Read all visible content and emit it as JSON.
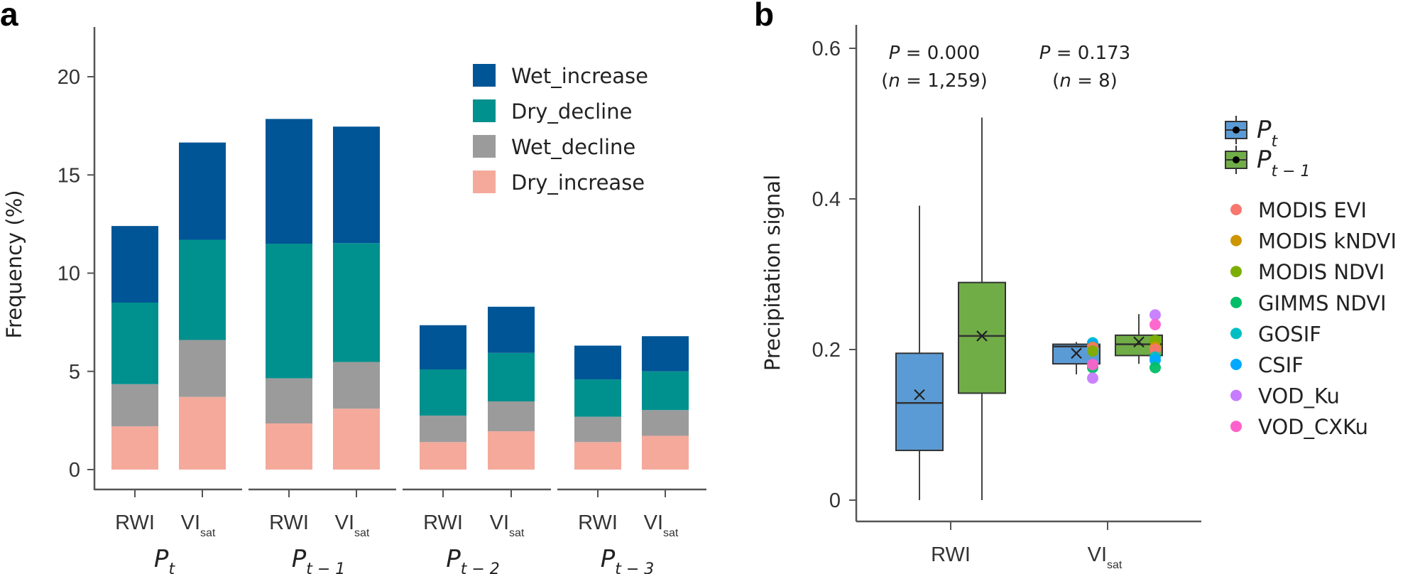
{
  "chart_data": [
    {
      "panel": "a",
      "type": "bar",
      "stacked": true,
      "title": "",
      "xlabel": "",
      "ylabel": "Frequency (%)",
      "ylim": [
        0,
        22.5
      ],
      "yticks": [
        0,
        5,
        10,
        15,
        20
      ],
      "grid": false,
      "legend_position": "top-right",
      "groups": [
        {
          "label": "P",
          "sub": "t",
          "categories": [
            "RWI",
            "VI_sat"
          ]
        },
        {
          "label": "P",
          "sub": "t − 1",
          "categories": [
            "RWI",
            "VI_sat"
          ]
        },
        {
          "label": "P",
          "sub": "t − 2",
          "categories": [
            "RWI",
            "VI_sat"
          ]
        },
        {
          "label": "P",
          "sub": "t − 3",
          "categories": [
            "RWI",
            "VI_sat"
          ]
        }
      ],
      "categories": [
        "Pt RWI",
        "Pt VIsat",
        "Pt-1 RWI",
        "Pt-1 VIsat",
        "Pt-2 RWI",
        "Pt-2 VIsat",
        "Pt-3 RWI",
        "Pt-3 VIsat"
      ],
      "series": [
        {
          "name": "Dry_increase",
          "color": "#f4a99b",
          "values": [
            2.2,
            3.7,
            2.35,
            3.1,
            1.4,
            1.95,
            1.4,
            1.72
          ]
        },
        {
          "name": "Wet_decline",
          "color": "#9b9b9b",
          "values": [
            2.15,
            2.9,
            2.3,
            2.38,
            1.35,
            1.52,
            1.29,
            1.31
          ]
        },
        {
          "name": "Dry_decline",
          "color": "#00908e",
          "values": [
            4.15,
            5.1,
            6.85,
            6.05,
            2.35,
            2.47,
            1.9,
            1.97
          ]
        },
        {
          "name": "Wet_increase",
          "color": "#005596",
          "values": [
            3.9,
            4.95,
            6.35,
            5.93,
            2.25,
            2.35,
            1.72,
            1.79
          ]
        }
      ],
      "totals": [
        12.4,
        16.65,
        17.85,
        17.46,
        7.35,
        8.29,
        6.31,
        6.79
      ],
      "legend_order": [
        "Wet_increase",
        "Dry_decline",
        "Wet_decline",
        "Dry_increase"
      ]
    },
    {
      "panel": "b",
      "type": "box",
      "title": "",
      "xlabel": "",
      "ylabel": "Precipitation signal",
      "ylim": [
        0,
        0.62
      ],
      "yticks": [
        0,
        0.2,
        0.4,
        0.6
      ],
      "ytick_labels": [
        "0",
        "0.2",
        "0.4",
        "0.6"
      ],
      "grid": false,
      "legend_position": "right",
      "categories": [
        "RWI",
        "VI_sat"
      ],
      "annotations": [
        {
          "category": "RWI",
          "line1": "P = 0.000",
          "line2": "(n = 1,259)"
        },
        {
          "category": "VI_sat",
          "line1": "P = 0.173",
          "line2": "(n = 8)"
        }
      ],
      "series": [
        {
          "name": "Pt",
          "color": "#5b9bd5",
          "boxes": [
            {
              "category": "RWI",
              "min": 0.0,
              "q1": 0.066,
              "median": 0.129,
              "q3": 0.195,
              "max": 0.391,
              "mean": 0.14
            },
            {
              "category": "VI_sat",
              "min": 0.167,
              "q1": 0.181,
              "median": 0.204,
              "q3": 0.207,
              "max": 0.21,
              "mean": 0.195
            }
          ]
        },
        {
          "name": "Pt-1",
          "color": "#70ad47",
          "boxes": [
            {
              "category": "RWI",
              "min": 0.0,
              "q1": 0.142,
              "median": 0.218,
              "q3": 0.289,
              "max": 0.508,
              "mean": 0.218
            },
            {
              "category": "VI_sat",
              "min": 0.181,
              "q1": 0.192,
              "median": 0.207,
              "q3": 0.219,
              "max": 0.247,
              "mean": 0.21
            }
          ]
        }
      ],
      "points": {
        "Pt": [
          {
            "dataset": "GOSIF",
            "value": 0.209
          },
          {
            "dataset": "CSIF",
            "value": 0.207
          },
          {
            "dataset": "MODIS kNDVI",
            "value": 0.203
          },
          {
            "dataset": "MODIS EVI",
            "value": 0.202
          },
          {
            "dataset": "MODIS NDVI",
            "value": 0.198
          },
          {
            "dataset": "GIMMS NDVI",
            "value": 0.176
          },
          {
            "dataset": "VOD_CXKu",
            "value": 0.18
          },
          {
            "dataset": "VOD_Ku",
            "value": 0.162
          }
        ],
        "Pt-1": [
          {
            "dataset": "VOD_Ku",
            "value": 0.246
          },
          {
            "dataset": "VOD_CXKu",
            "value": 0.233
          },
          {
            "dataset": "MODIS NDVI",
            "value": 0.212
          },
          {
            "dataset": "MODIS kNDVI",
            "value": 0.203
          },
          {
            "dataset": "MODIS EVI",
            "value": 0.2
          },
          {
            "dataset": "GOSIF",
            "value": 0.19
          },
          {
            "dataset": "CSIF",
            "value": 0.186
          },
          {
            "dataset": "GIMMS NDVI",
            "value": 0.176
          }
        ]
      },
      "box_legend": [
        {
          "name": "Pt",
          "label": "P",
          "sub": "t"
        },
        {
          "name": "Pt-1",
          "label": "P",
          "sub": "t − 1"
        }
      ],
      "point_legend": [
        {
          "name": "MODIS EVI",
          "color": "#f8766d"
        },
        {
          "name": "MODIS kNDVI",
          "color": "#cd9600"
        },
        {
          "name": "MODIS NDVI",
          "color": "#7cae00"
        },
        {
          "name": "GIMMS NDVI",
          "color": "#00be67"
        },
        {
          "name": "GOSIF",
          "color": "#00bfc4"
        },
        {
          "name": "CSIF",
          "color": "#00a9ff"
        },
        {
          "name": "VOD_Ku",
          "color": "#c77cff"
        },
        {
          "name": "VOD_CXKu",
          "color": "#ff61cc"
        }
      ]
    }
  ],
  "labels": {
    "panel_a": "a",
    "panel_b": "b",
    "vi_main": "VI",
    "vi_sub": "sat",
    "rwi": "RWI"
  }
}
